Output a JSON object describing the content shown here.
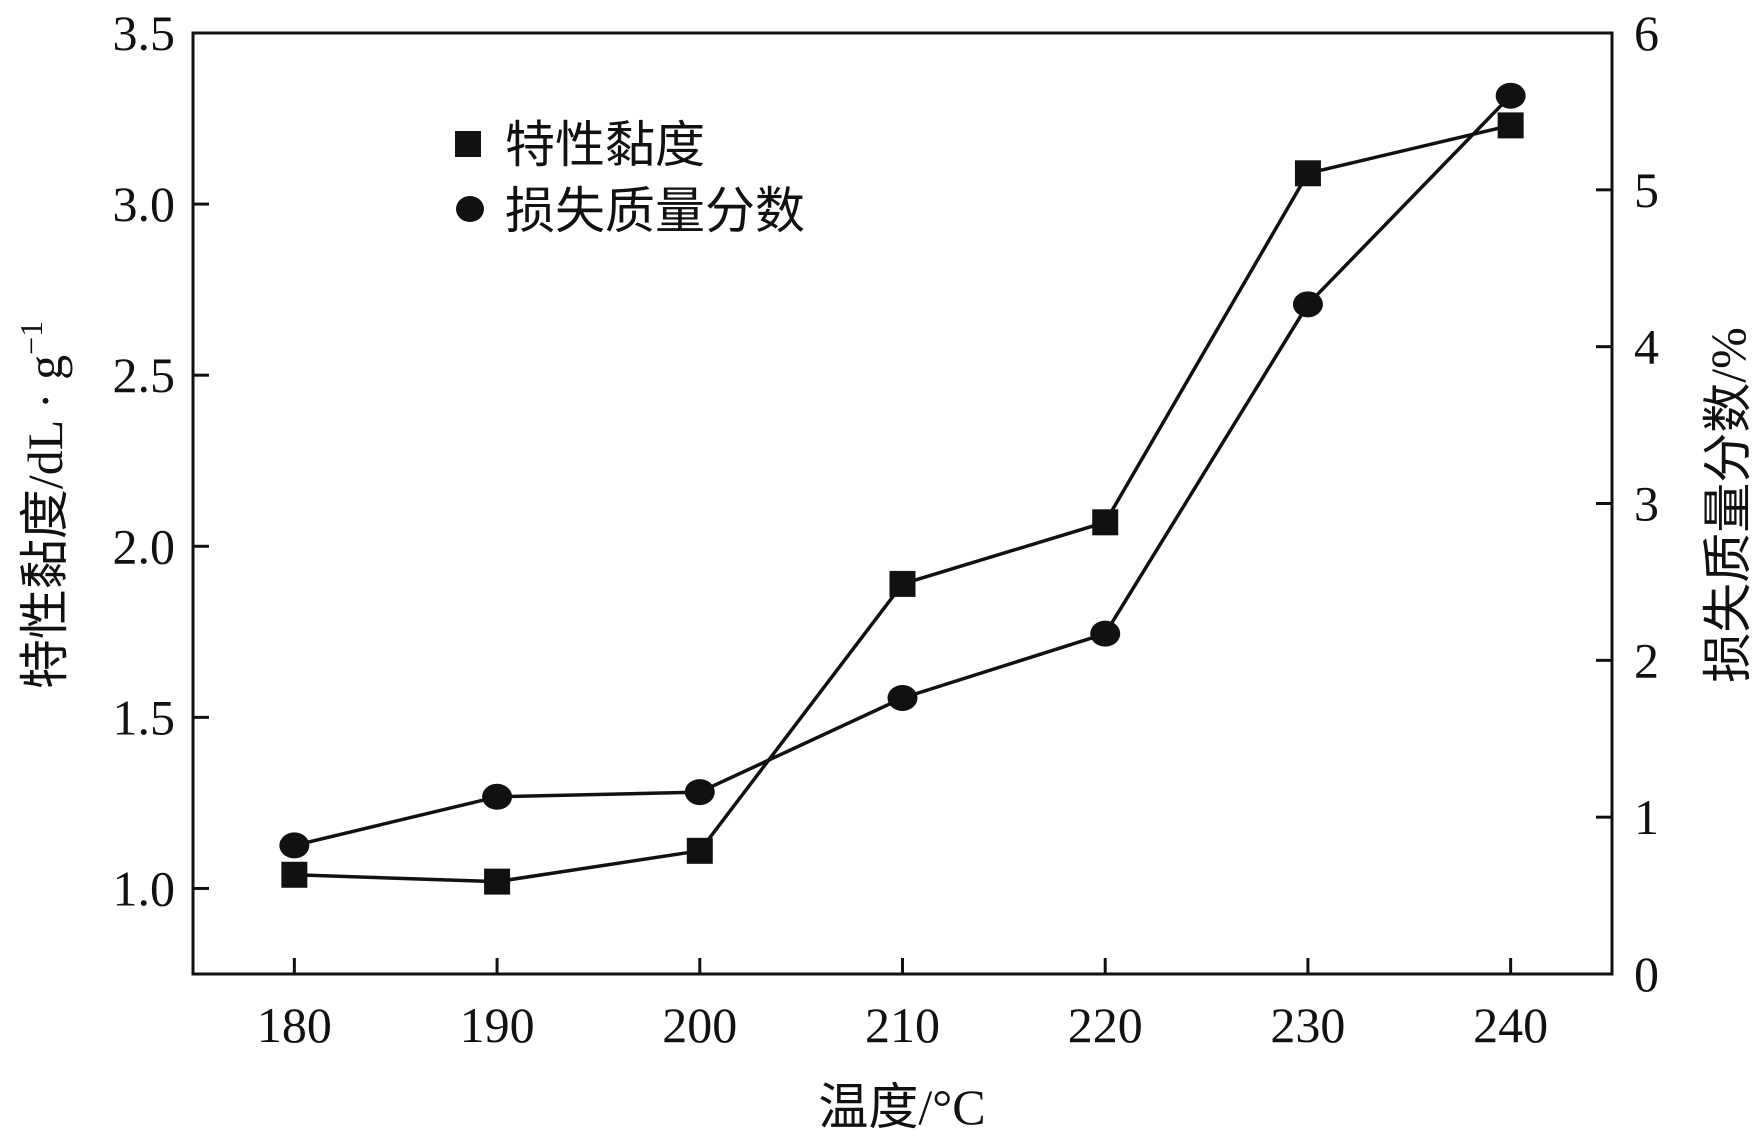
{
  "chart_data": {
    "type": "line",
    "x": [
      180,
      190,
      200,
      210,
      220,
      230,
      240
    ],
    "xlabel": "温度/°C",
    "xlim": [
      175,
      245
    ],
    "xticks": [
      "180",
      "190",
      "200",
      "210",
      "220",
      "230",
      "240"
    ],
    "ylabel_left": {
      "main": "特性黏度/dL · g",
      "sup": "−1"
    },
    "ylim_left": [
      0.75,
      3.5
    ],
    "yticks_left": [
      "1.0",
      "1.5",
      "2.0",
      "2.5",
      "3.0",
      "3.5"
    ],
    "ylabel_right": "损失质量分数/%",
    "ylim_right": [
      0,
      6
    ],
    "yticks_right": [
      "0",
      "1",
      "2",
      "3",
      "4",
      "5",
      "6"
    ],
    "series": [
      {
        "name": "特性黏度",
        "axis": "left",
        "marker": "square",
        "values": [
          1.04,
          1.02,
          1.11,
          1.89,
          2.07,
          3.09,
          3.23
        ]
      },
      {
        "name": "损失质量分数",
        "axis": "right",
        "marker": "circle",
        "values": [
          0.82,
          1.13,
          1.16,
          1.76,
          2.17,
          4.27,
          5.6
        ]
      }
    ],
    "grid": false,
    "legend_position": "top-left",
    "colors": {
      "line": "#111111",
      "marker": "#111111",
      "axis": "#111111"
    }
  }
}
